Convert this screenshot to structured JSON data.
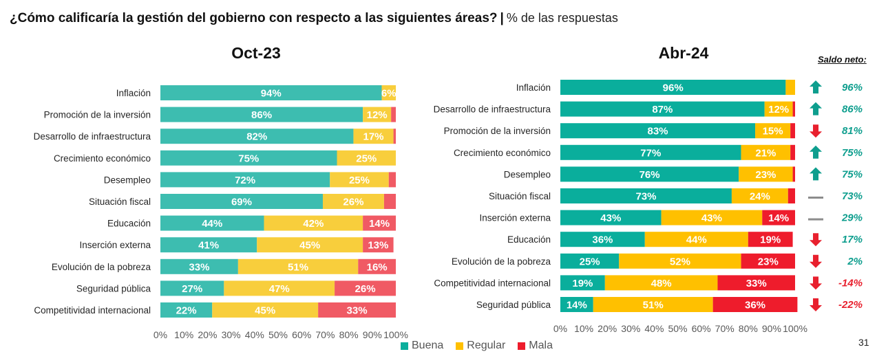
{
  "header": {
    "question": "¿Cómo calificaría la gestión del gobierno con respecto a las siguientes áreas?",
    "separator": "|",
    "subtitle": "% de las respuestas"
  },
  "colors": {
    "Buena": "#3DBDB0",
    "Regular": "#F8CE3C",
    "Mala": "#F05A64",
    "Buena_right": "#0AAE9C",
    "Regular_right": "#FFC000",
    "Mala_right": "#EE1C2C",
    "arrow_up": "#0E9E8E",
    "arrow_down": "#E8202E",
    "dash": "#8C8C8C"
  },
  "saldo_header": "Saldo neto:",
  "page_number": "31",
  "legend": [
    "Buena",
    "Regular",
    "Mala"
  ],
  "chart_data": [
    {
      "type": "bar",
      "orientation": "horizontal",
      "stacked": true,
      "title": "Oct-23",
      "categories": [
        "Inflación",
        "Promoción de la inversión",
        "Desarrollo de infraestructura",
        "Crecimiento económico",
        "Desempleo",
        "Situación fiscal",
        "Educación",
        "Inserción externa",
        "Evolución de la pobreza",
        "Seguridad pública",
        "Competitividad internacional"
      ],
      "series": [
        {
          "name": "Buena",
          "values": [
            94,
            86,
            82,
            75,
            72,
            69,
            44,
            41,
            33,
            27,
            22
          ]
        },
        {
          "name": "Regular",
          "values": [
            6,
            12,
            17,
            25,
            25,
            26,
            42,
            45,
            51,
            47,
            45
          ]
        },
        {
          "name": "Mala",
          "values": [
            0,
            2,
            1,
            0,
            3,
            5,
            14,
            13,
            16,
            26,
            33
          ]
        }
      ],
      "labels": {
        "Buena": [
          "94%",
          "86%",
          "82%",
          "75%",
          "72%",
          "69%",
          "44%",
          "41%",
          "33%",
          "27%",
          "22%"
        ],
        "Regular": [
          "6%",
          "12%",
          "17%",
          "25%",
          "25%",
          "26%",
          "42%",
          "45%",
          "51%",
          "47%",
          "45%"
        ],
        "Mala": [
          "",
          "",
          "",
          "",
          "",
          "",
          "14%",
          "13%",
          "16%",
          "26%",
          "33%"
        ]
      },
      "xlim": [
        0,
        100
      ],
      "xticks": [
        "0%",
        "10%",
        "20%",
        "30%",
        "40%",
        "50%",
        "60%",
        "70%",
        "80%",
        "90%",
        "100%"
      ]
    },
    {
      "type": "bar",
      "orientation": "horizontal",
      "stacked": true,
      "title": "Abr-24",
      "categories": [
        "Inflación",
        "Desarrollo de infraestructura",
        "Promoción de la inversión",
        "Crecimiento económico",
        "Desempleo",
        "Situación fiscal",
        "Inserción externa",
        "Educación",
        "Evolución de la pobreza",
        "Competitividad internacional",
        "Seguridad pública"
      ],
      "series": [
        {
          "name": "Buena",
          "values": [
            96,
            87,
            83,
            77,
            76,
            73,
            43,
            36,
            25,
            19,
            14
          ]
        },
        {
          "name": "Regular",
          "values": [
            4,
            12,
            15,
            21,
            23,
            24,
            43,
            44,
            52,
            48,
            51
          ]
        },
        {
          "name": "Mala",
          "values": [
            0,
            1,
            2,
            2,
            1,
            3,
            14,
            19,
            23,
            33,
            36
          ]
        }
      ],
      "labels": {
        "Buena": [
          "96%",
          "87%",
          "83%",
          "77%",
          "76%",
          "73%",
          "43%",
          "36%",
          "25%",
          "19%",
          "14%"
        ],
        "Regular": [
          "",
          "12%",
          "15%",
          "21%",
          "23%",
          "24%",
          "43%",
          "44%",
          "52%",
          "48%",
          "51%"
        ],
        "Mala": [
          "",
          "",
          "",
          "",
          "",
          "",
          "14%",
          "19%",
          "23%",
          "33%",
          "36%"
        ]
      },
      "xlim": [
        0,
        100
      ],
      "xticks": [
        "0%",
        "10%",
        "20%",
        "30%",
        "40%",
        "50%",
        "60%",
        "70%",
        "80%",
        "90%",
        "100%"
      ],
      "saldo_neto": {
        "values": [
          "96%",
          "86%",
          "81%",
          "75%",
          "75%",
          "73%",
          "29%",
          "17%",
          "2%",
          "-14%",
          "-22%"
        ],
        "trend": [
          "up",
          "up",
          "down",
          "up",
          "up",
          "flat",
          "flat",
          "down",
          "down",
          "down",
          "down"
        ]
      }
    }
  ]
}
